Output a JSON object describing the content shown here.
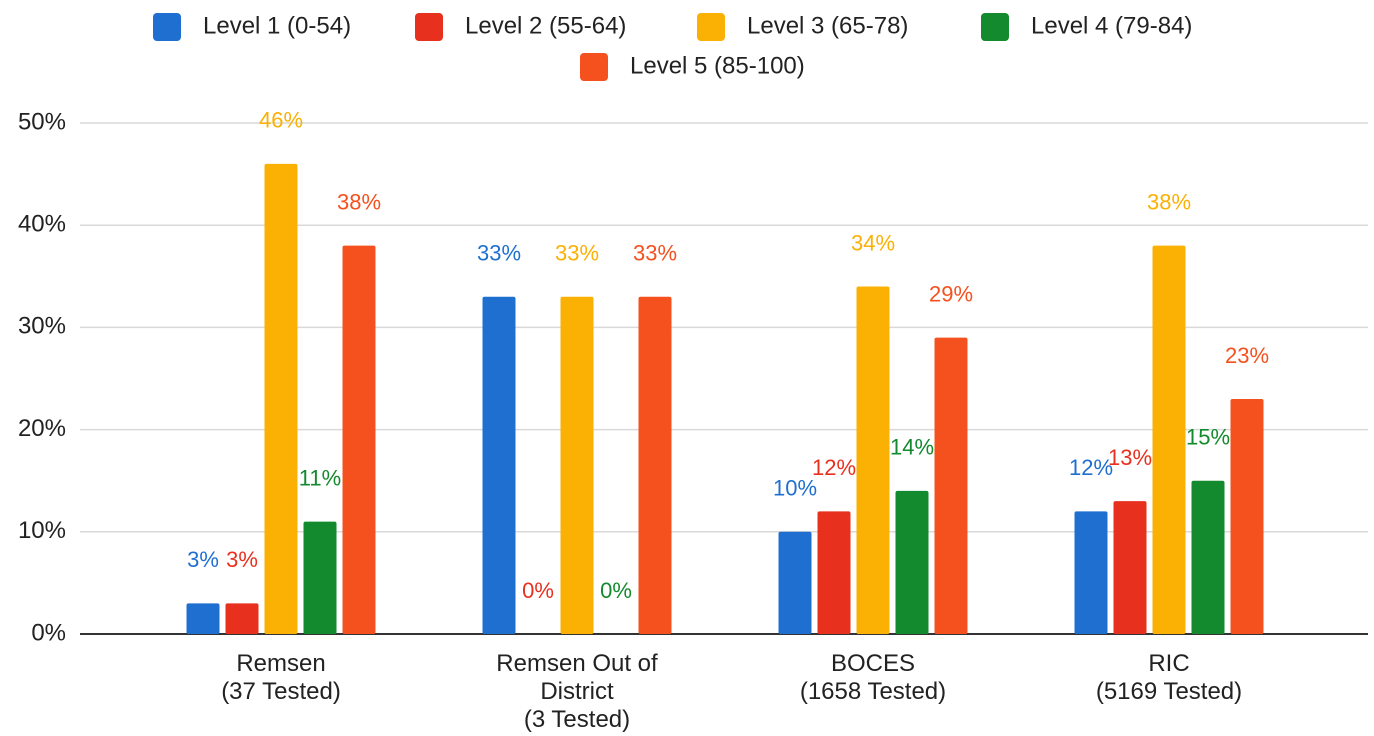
{
  "chart_data": {
    "type": "bar",
    "categories": [
      [
        "Remsen",
        "(37 Tested)"
      ],
      [
        "Remsen Out of",
        "District",
        "(3 Tested)"
      ],
      [
        "BOCES",
        "(1658 Tested)"
      ],
      [
        "RIC",
        "(5169 Tested)"
      ]
    ],
    "series": [
      {
        "name": "Level 1 (0-54)",
        "color": "#1f6fd1",
        "values": [
          3,
          33,
          10,
          12
        ],
        "value_labels": [
          "3%",
          "33%",
          "10%",
          "12%"
        ]
      },
      {
        "name": "Level 2 (55-64)",
        "color": "#e8301f",
        "values": [
          3,
          0,
          12,
          13
        ],
        "value_labels": [
          "3%",
          "0%",
          "12%",
          "13%"
        ]
      },
      {
        "name": "Level 3 (65-78)",
        "color": "#fbb004",
        "values": [
          46,
          33,
          34,
          38
        ],
        "value_labels": [
          "46%",
          "33%",
          "34%",
          "38%"
        ]
      },
      {
        "name": "Level 4 (79-84)",
        "color": "#138a2d",
        "values": [
          11,
          0,
          14,
          15
        ],
        "value_labels": [
          "11%",
          "0%",
          "14%",
          "15%"
        ]
      },
      {
        "name": "Level 5 (85-100)",
        "color": "#f4511e",
        "values": [
          38,
          33,
          29,
          23
        ],
        "value_labels": [
          "38%",
          "33%",
          "29%",
          "23%"
        ]
      }
    ],
    "ylim": [
      0,
      50
    ],
    "yticks": [
      {
        "value": 0,
        "label": "0%"
      },
      {
        "value": 10,
        "label": "10%"
      },
      {
        "value": 20,
        "label": "20%"
      },
      {
        "value": 30,
        "label": "30%"
      },
      {
        "value": 40,
        "label": "40%"
      },
      {
        "value": 50,
        "label": "50%"
      }
    ],
    "grid": true,
    "legend": "top"
  }
}
